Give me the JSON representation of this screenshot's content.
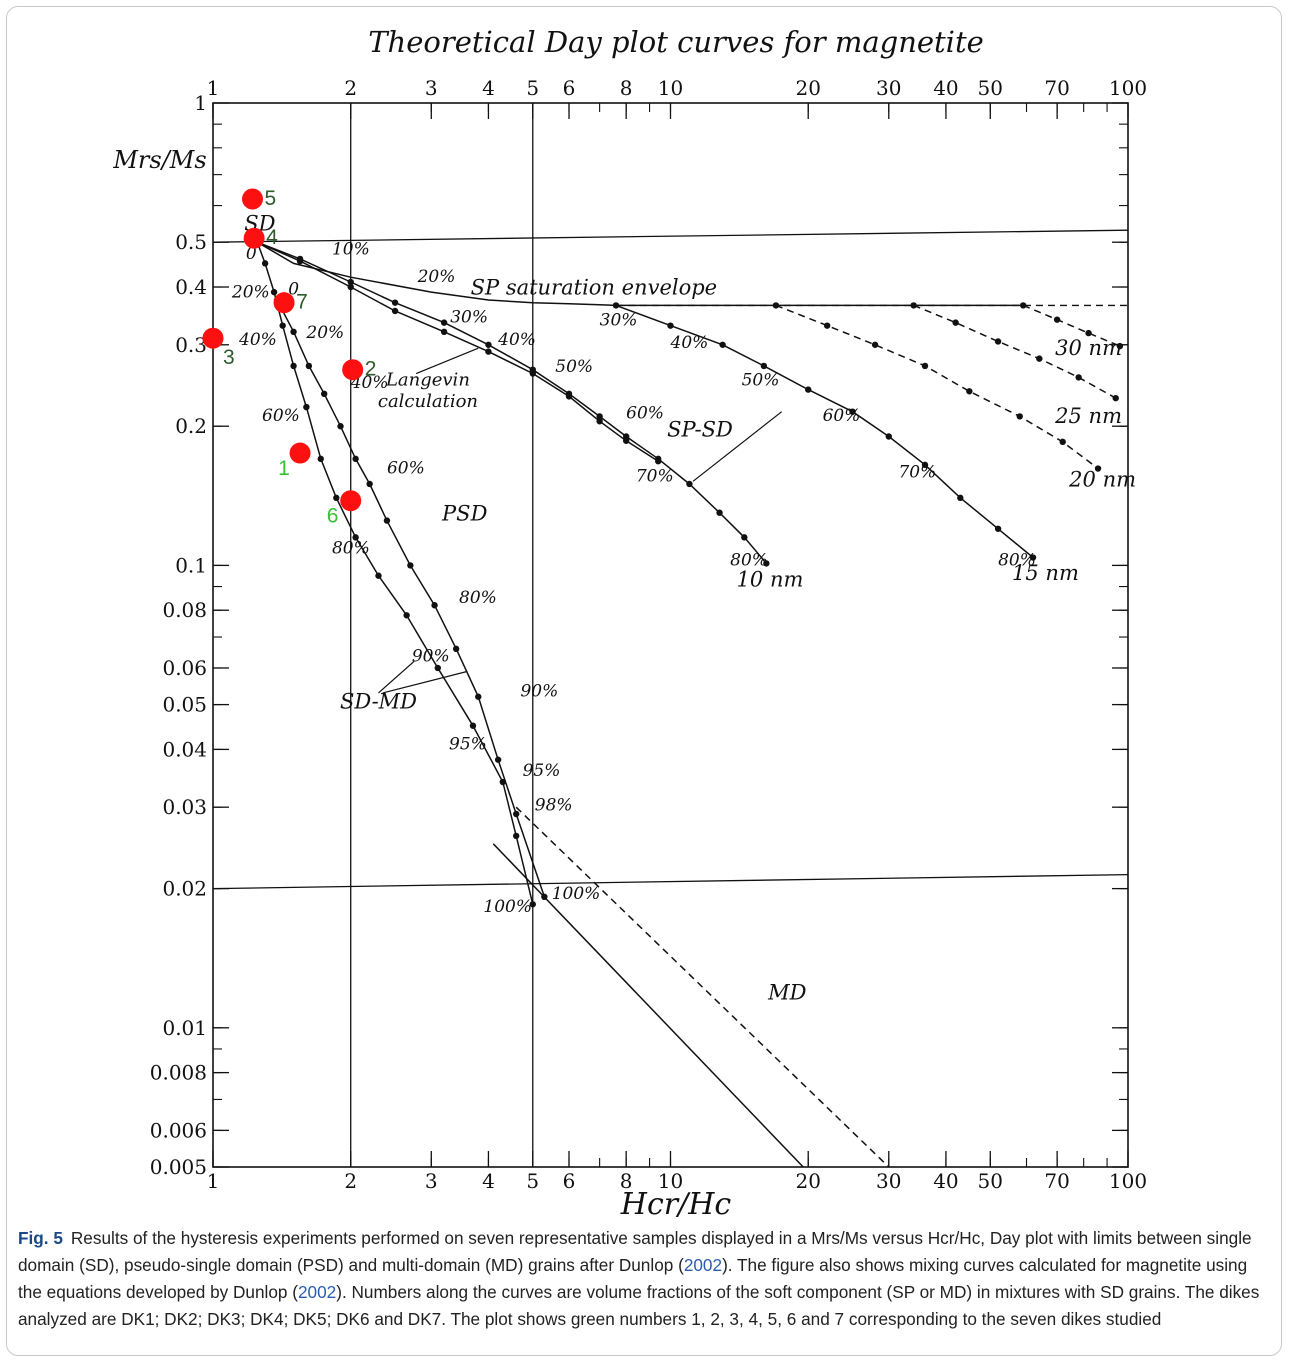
{
  "chart_data": {
    "type": "scatter",
    "title": "Theoretical Day plot curves for magnetite",
    "xlabel": "Hcr/Hc",
    "ylabel": "Mrs/Ms",
    "x_scale": "log",
    "y_scale": "log",
    "xlim": [
      1,
      100
    ],
    "ylim": [
      0.005,
      1
    ],
    "x_ticks_bottom": [
      "1",
      "2",
      "3",
      "4",
      "5",
      "6",
      "8",
      "10",
      "20",
      "30",
      "40",
      "50",
      "70",
      "100"
    ],
    "x_ticks_top": [
      "1",
      "2",
      "3",
      "4",
      "5",
      "6",
      "8",
      "10",
      "20",
      "30",
      "40",
      "50",
      "70",
      "100"
    ],
    "y_ticks": [
      "1",
      "0.5",
      "0.4",
      "0.3",
      "0.2",
      "0.1",
      "0.08",
      "0.06",
      "0.05",
      "0.04",
      "0.03",
      "0.02",
      "0.01",
      "0.008",
      "0.006",
      "0.005"
    ],
    "region_labels": [
      "SD",
      "PSD",
      "MD",
      "SD-MD",
      "SP-SD"
    ],
    "curve_labels": {
      "sp_envelope": "SP saturation envelope",
      "langevin": "Langevin calculation",
      "nm10": "10 nm",
      "nm15": "15 nm",
      "nm20": "20 nm",
      "nm25": "25 nm",
      "nm30": "30 nm"
    },
    "boundaries": {
      "sd_limit_y": 0.5,
      "md_limit_y": 0.02,
      "sd_limit_x": 2,
      "md_limit_x": 5
    },
    "samples": [
      {
        "label": "1",
        "x": 1.55,
        "y": 0.175,
        "color": "#31c531"
      },
      {
        "label": "2",
        "x": 2.02,
        "y": 0.265,
        "color": "#2e5a2e"
      },
      {
        "label": "3",
        "x": 1.0,
        "y": 0.31,
        "color": "#2e5a2e"
      },
      {
        "label": "4",
        "x": 1.23,
        "y": 0.51,
        "color": "#2e5a2e"
      },
      {
        "label": "5",
        "x": 1.22,
        "y": 0.62,
        "color": "#2e5a2e"
      },
      {
        "label": "6",
        "x": 2.0,
        "y": 0.138,
        "color": "#31c531"
      },
      {
        "label": "7",
        "x": 1.43,
        "y": 0.37,
        "color": "#2e5a2e"
      }
    ],
    "sd_md_curve_1": {
      "x": [
        1.25,
        1.3,
        1.36,
        1.42,
        1.5,
        1.6,
        1.72,
        1.86,
        2.05,
        2.3,
        2.65,
        3.1,
        3.7,
        4.3,
        4.6,
        5.0
      ],
      "y": [
        0.5,
        0.45,
        0.39,
        0.33,
        0.27,
        0.22,
        0.17,
        0.14,
        0.115,
        0.095,
        0.078,
        0.06,
        0.045,
        0.034,
        0.026,
        0.0185
      ],
      "labels": [
        "0",
        "20%",
        "40%",
        "60%",
        "80%",
        "90%",
        "95%",
        "100%"
      ]
    },
    "sd_md_curve_2": {
      "x": [
        1.38,
        1.5,
        1.62,
        1.75,
        1.9,
        2.05,
        2.2,
        2.4,
        2.7,
        3.05,
        3.4,
        3.8,
        4.2,
        4.6,
        5.3
      ],
      "y": [
        0.375,
        0.32,
        0.27,
        0.235,
        0.2,
        0.17,
        0.15,
        0.125,
        0.1,
        0.082,
        0.066,
        0.052,
        0.038,
        0.029,
        0.0192
      ],
      "labels": [
        "0",
        "20%",
        "40%",
        "60%",
        "80%",
        "90%",
        "95%",
        "98%",
        "100%"
      ]
    },
    "sp_envelope": {
      "x": [
        1.25,
        1.5,
        2,
        3,
        4,
        5,
        6,
        7,
        7.6,
        10,
        20,
        35,
        60
      ],
      "y": [
        0.5,
        0.45,
        0.42,
        0.39,
        0.375,
        0.37,
        0.368,
        0.366,
        0.365,
        0.365,
        0.365,
        0.365,
        0.365
      ]
    },
    "sp_sd_10nm": {
      "x": [
        1.25,
        1.55,
        2,
        2.5,
        3.2,
        4,
        5,
        6,
        7,
        8,
        9.4,
        11,
        12.8,
        14.5,
        16.2
      ],
      "y": [
        0.5,
        0.46,
        0.41,
        0.37,
        0.335,
        0.3,
        0.265,
        0.235,
        0.21,
        0.19,
        0.17,
        0.15,
        0.13,
        0.115,
        0.101
      ],
      "labels": [
        "10%",
        "20%",
        "30%",
        "40%",
        "50%",
        "60%",
        "70%",
        "80%"
      ]
    },
    "langevin_curve": {
      "x": [
        1.25,
        1.55,
        2,
        2.5,
        3.2,
        4,
        5,
        6,
        7,
        8,
        9.4
      ],
      "y": [
        0.5,
        0.455,
        0.4,
        0.355,
        0.32,
        0.29,
        0.26,
        0.232,
        0.205,
        0.186,
        0.168
      ]
    },
    "sp_sd_15nm": {
      "x": [
        7.6,
        10,
        13,
        16,
        20,
        25,
        30,
        36,
        43,
        52,
        62
      ],
      "y": [
        0.365,
        0.33,
        0.3,
        0.27,
        0.24,
        0.215,
        0.19,
        0.165,
        0.14,
        0.12,
        0.104
      ],
      "labels": [
        "30%",
        "40%",
        "50%",
        "60%",
        "70%",
        "80%"
      ]
    },
    "sp_sd_20nm": {
      "x": [
        17,
        22,
        28,
        36,
        45,
        58,
        72,
        86
      ],
      "y": [
        0.365,
        0.33,
        0.3,
        0.27,
        0.238,
        0.21,
        0.185,
        0.162
      ]
    },
    "sp_sd_25nm": {
      "x": [
        34,
        42,
        52,
        64,
        78,
        94
      ],
      "y": [
        0.365,
        0.335,
        0.305,
        0.28,
        0.255,
        0.23
      ]
    },
    "sp_sd_30nm": {
      "x": [
        59,
        70,
        82,
        96
      ],
      "y": [
        0.365,
        0.34,
        0.318,
        0.298
      ]
    },
    "md_line": {
      "x": [
        4.1,
        19.5
      ],
      "y": [
        0.025,
        0.005
      ]
    },
    "md_dashed": {
      "x": [
        4.6,
        30
      ],
      "y": [
        0.03,
        0.005
      ]
    }
  },
  "caption": {
    "fig_label": "Fig. 5",
    "text_1": "Results of the hysteresis experiments performed on seven representative samples displayed in a Mrs/Ms versus Hcr/Hc, Day plot with limits between single domain (SD), pseudo-single domain (PSD) and multi-domain (MD) grains after Dunlop (",
    "ref_1": "2002",
    "text_2": "). The figure also shows mixing curves calculated for magnetite using the equations developed by Dunlop (",
    "ref_2": "2002",
    "text_3": "). Numbers along the curves are volume fractions of the soft component (SP or MD) in mixtures with SD grains. The dikes analyzed are DK1; DK2; DK3; DK4; DK5; DK6 and DK7. The plot shows green numbers 1, 2, 3, 4, 5, 6 and 7 corresponding to the seven dikes studied"
  }
}
